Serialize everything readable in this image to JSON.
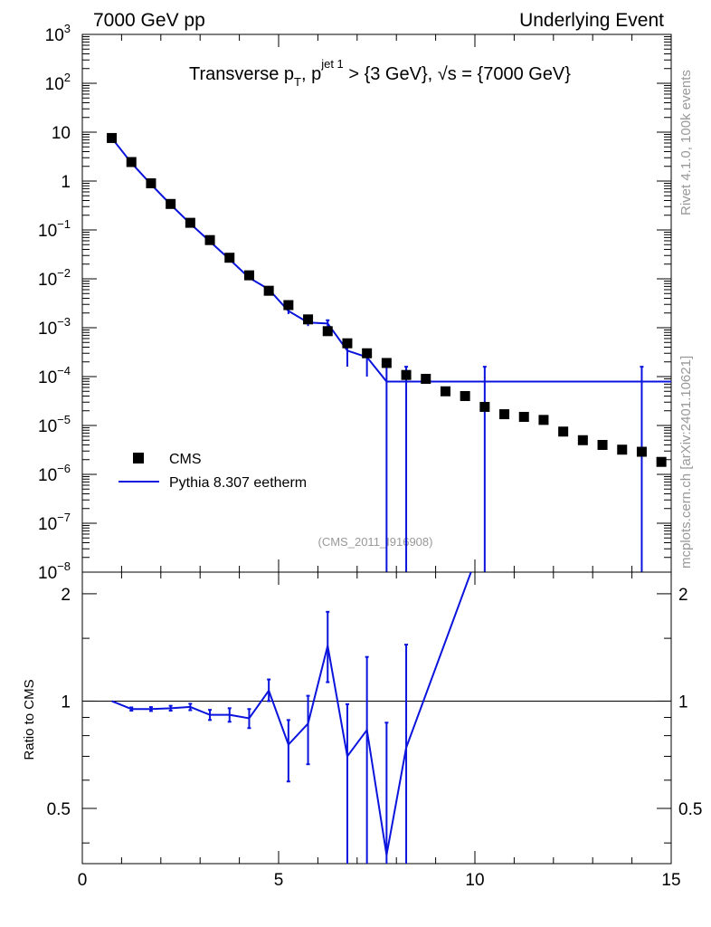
{
  "header": {
    "left": "7000 GeV pp",
    "right": "Underlying Event"
  },
  "side_labels": {
    "rivet": "Rivet 4.1.0,  100k events",
    "mcplots": "mcplots.cern.ch [arXiv:2401.10621]"
  },
  "colors": {
    "mc": "#0a14dc",
    "data": "#000000",
    "watermark": "#999999"
  },
  "chart_data": [
    {
      "type": "scatter",
      "panel": "main",
      "title": "Transverse p_T, p_T^{jet 1} > {3 GeV}, √s = {7000 GeV}",
      "title_parts": {
        "prefix": "Transverse p",
        "sub_t": "T",
        "sep": ", p",
        "sup_jet": "jet 1",
        "cut": " > {3 GeV}, ",
        "sqrt_glyph": "√",
        "s_eq": "s = {7000 GeV}"
      },
      "watermark": "(CMS_2011_I916908)",
      "yscale": "log",
      "xlim": [
        0,
        15
      ],
      "ylim": [
        1e-08,
        1000
      ],
      "x_ticks": [
        0,
        5,
        10,
        15
      ],
      "y_ticks": [
        {
          "mant": "10",
          "exp": "3"
        },
        {
          "mant": "10",
          "exp": "2"
        },
        {
          "mant": "10",
          "exp": ""
        },
        {
          "mant": "1",
          "exp": ""
        },
        {
          "mant": "10",
          "exp": "−1"
        },
        {
          "mant": "10",
          "exp": "−2"
        },
        {
          "mant": "10",
          "exp": "−3"
        },
        {
          "mant": "10",
          "exp": "−4"
        },
        {
          "mant": "10",
          "exp": "−5"
        },
        {
          "mant": "10",
          "exp": "−6"
        },
        {
          "mant": "10",
          "exp": "−7"
        },
        {
          "mant": "10",
          "exp": "−8"
        }
      ],
      "y_tick_values": [
        1000,
        100,
        10,
        1,
        0.1,
        0.01,
        0.001,
        0.0001,
        1e-05,
        1e-06,
        1e-07,
        1e-08
      ],
      "legend": {
        "position": "lower-left",
        "entries": [
          "CMS",
          "Pythia 8.307 eetherm"
        ]
      },
      "series": [
        {
          "name": "CMS",
          "style": "markers",
          "x": [
            0.75,
            1.25,
            1.75,
            2.25,
            2.75,
            3.25,
            3.75,
            4.25,
            4.75,
            5.25,
            5.75,
            6.25,
            6.75,
            7.25,
            7.75,
            8.25,
            8.75,
            9.25,
            9.75,
            10.25,
            10.75,
            11.25,
            11.75,
            12.25,
            12.75,
            13.25,
            13.75,
            14.25,
            14.75
          ],
          "y": [
            7.6,
            2.45,
            0.9,
            0.34,
            0.14,
            0.062,
            0.027,
            0.0118,
            0.0057,
            0.0029,
            0.00148,
            0.00085,
            0.00048,
            0.0003,
            0.00019,
            0.000108,
            9e-05,
            5e-05,
            4e-05,
            2.4e-05,
            1.7e-05,
            1.5e-05,
            1.3e-05,
            7.5e-06,
            5e-06,
            4e-06,
            3.2e-06,
            2.9e-06,
            1.8e-06
          ]
        },
        {
          "name": "Pythia 8.307 eetherm",
          "style": "line",
          "x": [
            0.75,
            1.25,
            1.75,
            2.25,
            2.75,
            3.25,
            3.75,
            4.25,
            4.75,
            5.25,
            5.75,
            6.25,
            6.75,
            7.25,
            7.75,
            8.25,
            10.25,
            14.25
          ],
          "y": [
            7.6,
            2.35,
            0.86,
            0.33,
            0.135,
            0.058,
            0.025,
            0.0105,
            0.0061,
            0.0022,
            0.00128,
            0.00122,
            0.00034,
            0.00025,
            7.9e-05,
            7.9e-05,
            7.9e-05,
            7.9e-05
          ],
          "yerr_low": [
            0,
            0,
            0,
            0,
            0,
            0,
            0,
            0,
            0,
            0.0003,
            0.0002,
            0.0004,
            0.00018,
            0.00015,
            7.9e-05,
            7.9e-05,
            7.9e-05,
            7.9e-05
          ],
          "yerr_high": [
            0,
            0,
            0,
            0,
            0,
            0,
            0,
            0,
            0,
            0.0003,
            0.0002,
            0.0002,
            0.00018,
            0.0001,
            8e-05,
            8e-05,
            8e-05,
            8e-05
          ],
          "line_to_edge": [
            15,
            7.9e-05
          ]
        }
      ]
    },
    {
      "type": "line",
      "panel": "ratio",
      "ylabel": "Ratio to CMS",
      "xlim": [
        0,
        15
      ],
      "ylim": [
        0.35,
        2.3
      ],
      "x_ticks": [
        0,
        5,
        10,
        15
      ],
      "x_tick_labels": [
        "0",
        "5",
        "10",
        "15"
      ],
      "y_ticks": [
        0.5,
        1,
        2
      ],
      "y_tick_labels": [
        "0.5",
        "1",
        "2"
      ],
      "reference_line": 1,
      "series": [
        {
          "name": "Pythia 8.307 eetherm / CMS",
          "x": [
            0.75,
            1.25,
            1.75,
            2.25,
            2.75,
            3.25,
            3.75,
            4.25,
            4.75,
            5.25,
            5.75,
            6.25,
            6.75,
            7.25,
            7.75,
            8.25,
            9.9
          ],
          "y": [
            1.0,
            0.95,
            0.95,
            0.955,
            0.963,
            0.915,
            0.915,
            0.895,
            1.07,
            0.755,
            0.865,
            1.43,
            0.7,
            0.83,
            0.37,
            0.74,
            2.3
          ],
          "yerr_low": [
            0,
            0.01,
            0.012,
            0.015,
            0.02,
            0.03,
            0.04,
            0.055,
            0.07,
            0.16,
            0.2,
            0.3,
            0.35,
            0.5,
            0.02,
            0.39,
            0
          ],
          "yerr_high": [
            0,
            0.01,
            0.012,
            0.015,
            0.02,
            0.03,
            0.04,
            0.055,
            0.08,
            0.13,
            0.17,
            0.35,
            0.28,
            0.5,
            0.5,
            0.7,
            0
          ]
        }
      ]
    }
  ]
}
